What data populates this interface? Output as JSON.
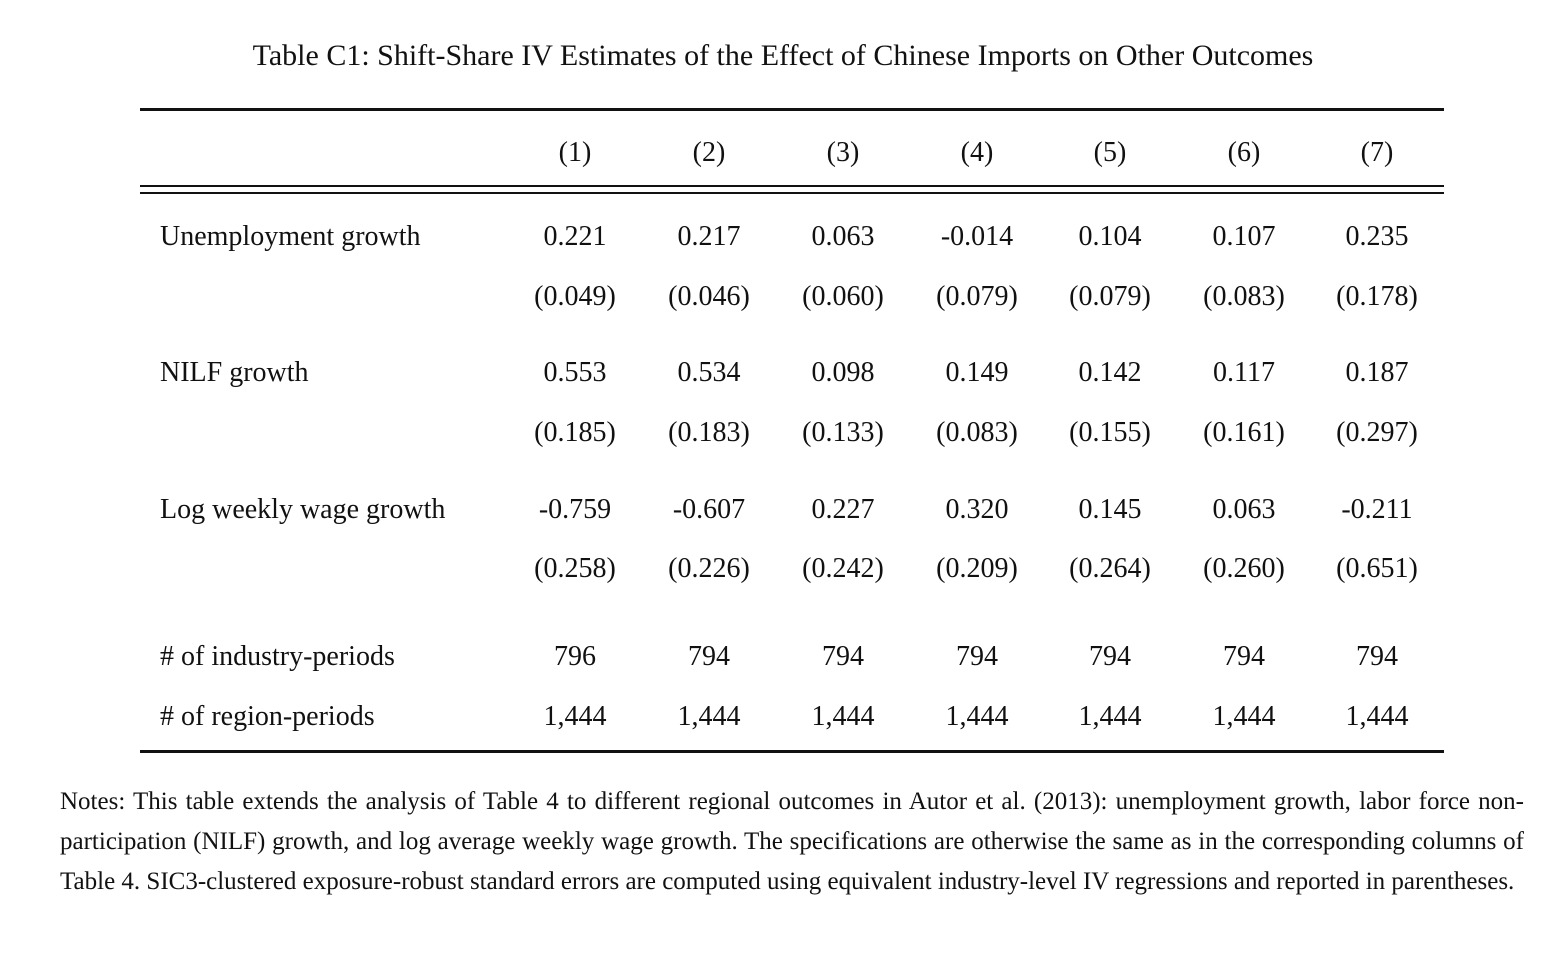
{
  "title": "Table C1: Shift-Share IV Estimates of the Effect of Chinese Imports on Other Outcomes",
  "columns": [
    "(1)",
    "(2)",
    "(3)",
    "(4)",
    "(5)",
    "(6)",
    "(7)"
  ],
  "outcomes": [
    {
      "label": "Unemployment growth",
      "estimates": [
        "0.221",
        "0.217",
        "0.063",
        "-0.014",
        "0.104",
        "0.107",
        "0.235"
      ],
      "std_errors": [
        "(0.049)",
        "(0.046)",
        "(0.060)",
        "(0.079)",
        "(0.079)",
        "(0.083)",
        "(0.178)"
      ]
    },
    {
      "label": "NILF growth",
      "estimates": [
        "0.553",
        "0.534",
        "0.098",
        "0.149",
        "0.142",
        "0.117",
        "0.187"
      ],
      "std_errors": [
        "(0.185)",
        "(0.183)",
        "(0.133)",
        "(0.083)",
        "(0.155)",
        "(0.161)",
        "(0.297)"
      ]
    },
    {
      "label": "Log weekly wage growth",
      "estimates": [
        "-0.759",
        "-0.607",
        "0.227",
        "0.320",
        "0.145",
        "0.063",
        "-0.211"
      ],
      "std_errors": [
        "(0.258)",
        "(0.226)",
        "(0.242)",
        "(0.209)",
        "(0.264)",
        "(0.260)",
        "(0.651)"
      ]
    }
  ],
  "counts": [
    {
      "label": "# of industry-periods",
      "values": [
        "796",
        "794",
        "794",
        "794",
        "794",
        "794",
        "794"
      ]
    },
    {
      "label": "# of region-periods",
      "values": [
        "1,444",
        "1,444",
        "1,444",
        "1,444",
        "1,444",
        "1,444",
        "1,444"
      ]
    }
  ],
  "notes": "Notes: This table extends the analysis of Table 4 to different regional outcomes in Autor et al. (2013): unemployment growth, labor force non-participation (NILF) growth, and log average weekly wage growth. The specifications are otherwise the same as in the corresponding columns of Table 4. SIC3-clustered exposure-robust standard errors are computed using equivalent industry-level IV regressions and reported in parentheses."
}
